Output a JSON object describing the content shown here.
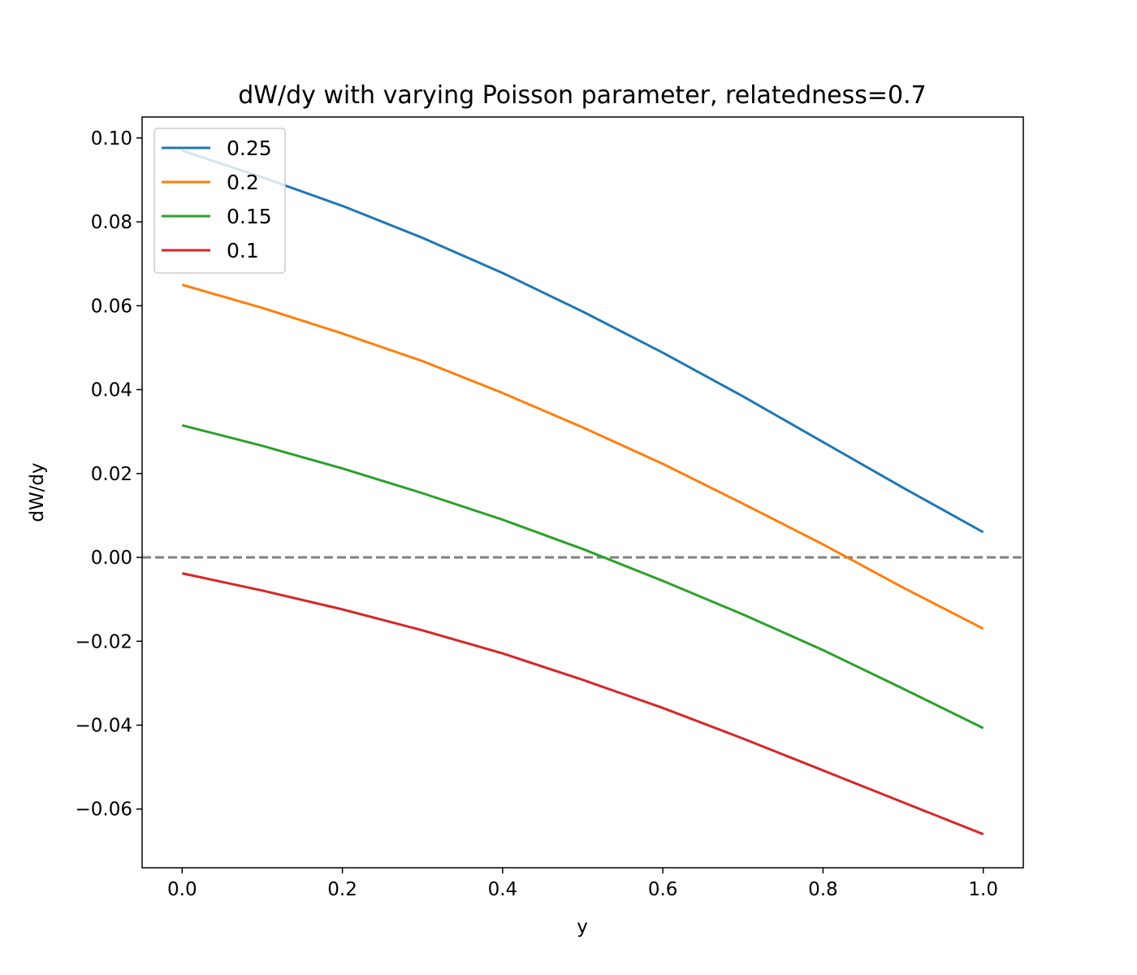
{
  "chart_data": {
    "type": "line",
    "title": "dW/dy with varying Poisson parameter, relatedness=0.7",
    "xlabel": "y",
    "ylabel": "dW/dy",
    "xlim": [
      -0.05,
      1.05
    ],
    "ylim": [
      -0.074,
      0.105
    ],
    "x_ticks": [
      0.0,
      0.2,
      0.4,
      0.6,
      0.8,
      1.0
    ],
    "x_tick_labels": [
      "0.0",
      "0.2",
      "0.4",
      "0.6",
      "0.8",
      "1.0"
    ],
    "y_ticks": [
      0.1,
      0.08,
      0.06,
      0.04,
      0.02,
      0.0,
      -0.02,
      -0.04,
      -0.06
    ],
    "y_tick_labels": [
      "0.10",
      "0.08",
      "0.06",
      "0.04",
      "0.02",
      "0.00",
      "−0.02",
      "−0.04",
      "−0.06"
    ],
    "grid": false,
    "legend_position": "top-left",
    "reference_line": {
      "y": 0.0,
      "style": "dashed",
      "color": "#808080"
    },
    "x": [
      0.0,
      0.1,
      0.2,
      0.3,
      0.4,
      0.5,
      0.6,
      0.7,
      0.8,
      0.9,
      1.0
    ],
    "series": [
      {
        "name": "0.25",
        "color": "#1f77b4",
        "values": [
          0.097,
          0.0906,
          0.0838,
          0.0762,
          0.0678,
          0.0586,
          0.0488,
          0.0384,
          0.0275,
          0.0166,
          0.006
        ]
      },
      {
        "name": "0.2",
        "color": "#ff7f0e",
        "values": [
          0.065,
          0.0595,
          0.0534,
          0.0468,
          0.0392,
          0.031,
          0.0223,
          0.0128,
          0.0031,
          -0.0072,
          -0.017
        ]
      },
      {
        "name": "0.15",
        "color": "#2ca02c",
        "values": [
          0.0315,
          0.0266,
          0.0212,
          0.0153,
          0.009,
          0.002,
          -0.0056,
          -0.0136,
          -0.0221,
          -0.0313,
          -0.0407
        ]
      },
      {
        "name": "0.1",
        "color": "#d62728",
        "values": [
          -0.0038,
          -0.0079,
          -0.0124,
          -0.0174,
          -0.0229,
          -0.0292,
          -0.0359,
          -0.0432,
          -0.0508,
          -0.0584,
          -0.066
        ]
      }
    ]
  }
}
